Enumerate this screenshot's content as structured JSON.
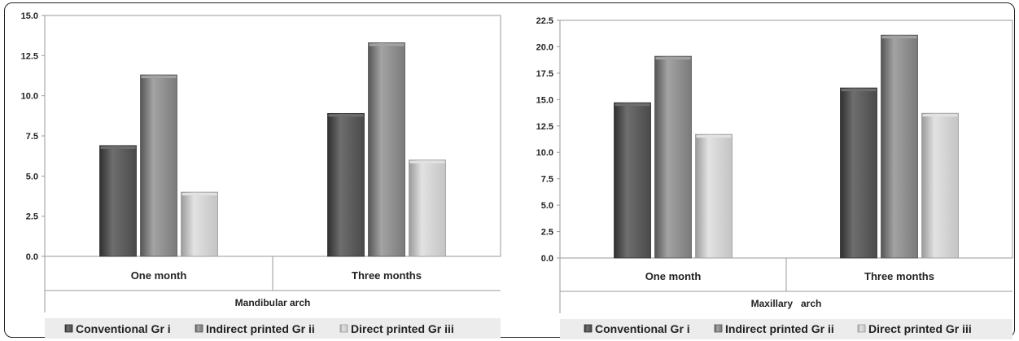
{
  "colors": {
    "series": [
      "#4a4a4a",
      "#7a7a7a",
      "#c4c4c4"
    ],
    "series_light": [
      "#6e6e6e",
      "#a3a3a3",
      "#e2e2e2"
    ],
    "series_dark": [
      "#2f2f2f",
      "#555555",
      "#9a9a9a"
    ],
    "plot_bg": "#ffffff",
    "legend_bg": "#ececec",
    "axis": "#9a9a9a"
  },
  "chart_data": [
    {
      "type": "bar",
      "categories": [
        "One month",
        "Three months"
      ],
      "group_label": "Mandibular arch",
      "ylim": [
        0,
        15
      ],
      "yticks": [
        "0.0",
        "2.5",
        "5.0",
        "7.5",
        "10.0",
        "12.5",
        "15.0"
      ],
      "series": [
        {
          "name": "Conventional Gr i",
          "values": [
            6.9,
            8.9
          ]
        },
        {
          "name": "Indirect printed Gr ii",
          "values": [
            11.3,
            13.3
          ]
        },
        {
          "name": "Direct printed Gr iii",
          "values": [
            4.0,
            6.0
          ]
        }
      ],
      "legend_position": "bottom"
    },
    {
      "type": "bar",
      "categories": [
        "One month",
        "Three months"
      ],
      "group_label": "Maxillary   arch",
      "ylim": [
        0,
        22.5
      ],
      "yticks": [
        "0.0",
        "2.5",
        "5.0",
        "7.5",
        "10.0",
        "12.5",
        "15.0",
        "17.5",
        "20.0",
        "22.5"
      ],
      "series": [
        {
          "name": "Conventional Gr i",
          "values": [
            14.7,
            16.1
          ]
        },
        {
          "name": "Indirect printed Gr ii",
          "values": [
            19.1,
            21.1
          ]
        },
        {
          "name": "Direct printed Gr iii",
          "values": [
            11.7,
            13.7
          ]
        }
      ],
      "legend_position": "bottom"
    }
  ]
}
